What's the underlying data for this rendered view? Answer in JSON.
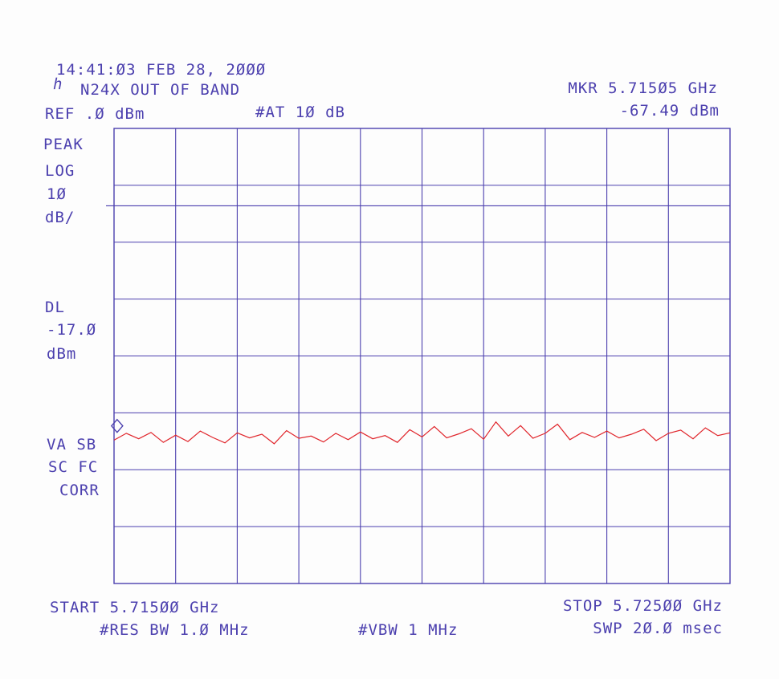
{
  "header": {
    "datetime": "14:41:Ø3 FEB 28, 2ØØØ",
    "logo_glyph": "ℎ",
    "title": "N24X OUT OF BAND",
    "ref": "REF .Ø dBm",
    "atten": "#AT 1Ø dB",
    "marker_freq": "MKR 5.715Ø5 GHz",
    "marker_level": "-67.49 dBm"
  },
  "left_panel": {
    "detector": "PEAK",
    "scale_type": "LOG",
    "scale_value": "1Ø",
    "scale_unit": "dB/",
    "dl_label": "DL",
    "dl_value": "-17.Ø",
    "dl_unit": "dBm",
    "flags_1": "VA SB",
    "flags_2": "SC FC",
    "flags_3": "CORR"
  },
  "footer": {
    "start": "START 5.715ØØ GHz",
    "stop": "STOP 5.725ØØ GHz",
    "rbw": "#RES BW 1.Ø MHz",
    "vbw": "#VBW 1 MHz",
    "sweep": "SWP 2Ø.Ø msec"
  },
  "colors": {
    "grid": "#4b3fae",
    "trace": "#e0242a",
    "text": "#4b3fae"
  },
  "chart_data": {
    "type": "line",
    "grid": true,
    "x_range": [
      5.715,
      5.725
    ],
    "y_range": [
      -100,
      0
    ],
    "display_line_dbm": -17.0,
    "marker": {
      "x": 5.71505,
      "y": -67.49
    },
    "series": [
      {
        "x": [
          5.715,
          5.7152,
          5.7154,
          5.7156,
          5.7158,
          5.716,
          5.7162,
          5.7164,
          5.7166,
          5.7168,
          5.717,
          5.7172,
          5.7174,
          5.7176,
          5.7178,
          5.718,
          5.7182,
          5.7184,
          5.7186,
          5.7188,
          5.719,
          5.7192,
          5.7194,
          5.7196,
          5.7198,
          5.72,
          5.7202,
          5.7204,
          5.7206,
          5.7208,
          5.721,
          5.7212,
          5.7214,
          5.7216,
          5.7218,
          5.722,
          5.7222,
          5.7224,
          5.7226,
          5.7228,
          5.723,
          5.7232,
          5.7234,
          5.7236,
          5.7238,
          5.724,
          5.7242,
          5.7244,
          5.7246,
          5.7248,
          5.725
        ],
        "y": [
          -68.5,
          -67.0,
          -68.2,
          -66.8,
          -69.0,
          -67.4,
          -68.8,
          -66.5,
          -67.9,
          -69.1,
          -66.9,
          -68.0,
          -67.2,
          -69.3,
          -66.4,
          -68.1,
          -67.6,
          -68.9,
          -67.0,
          -68.4,
          -66.7,
          -68.2,
          -67.5,
          -69.0,
          -66.2,
          -67.8,
          -65.5,
          -68.0,
          -67.1,
          -66.0,
          -68.3,
          -64.5,
          -67.6,
          -65.3,
          -68.1,
          -67.0,
          -65.0,
          -68.4,
          -66.8,
          -67.9,
          -66.5,
          -68.0,
          -67.2,
          -66.1,
          -68.6,
          -67.0,
          -66.3,
          -68.2,
          -65.8,
          -67.5,
          -66.9
        ]
      }
    ]
  }
}
